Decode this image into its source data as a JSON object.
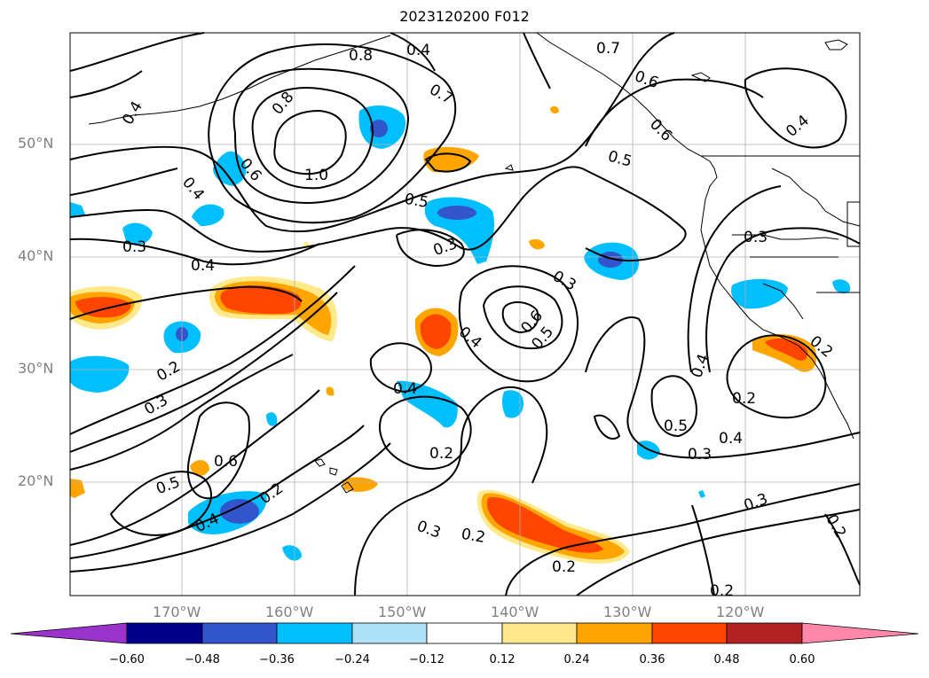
{
  "title": "2023120200 F012",
  "lat_labels": [
    "50°N",
    "40°N",
    "30°N",
    "20°N"
  ],
  "lon_labels": [
    "170°W",
    "160°W",
    "150°W",
    "140°W",
    "130°W",
    "120°W"
  ],
  "colorbar": {
    "ticks": [
      "−0.60",
      "−0.48",
      "−0.36",
      "−0.24",
      "−0.12",
      "0.12",
      "0.24",
      "0.36",
      "0.48",
      "0.60"
    ],
    "colors": [
      "#9933cc",
      "#00008b",
      "#3355cc",
      "#00bfff",
      "#aee0f8",
      "#ffffff",
      "#ffe98a",
      "#ffa500",
      "#ff4500",
      "#b22222",
      "#ff88aa"
    ]
  },
  "colors": {
    "blue_strong": "#3355cc",
    "blue": "#00bfff",
    "blue_light": "#aee0f8",
    "yellow": "#ffe98a",
    "orange": "#ffa500",
    "red_orange": "#ff4500"
  },
  "contour_labels": [
    {
      "text": "0.4"
    },
    {
      "text": "0.8"
    },
    {
      "text": "0.7"
    },
    {
      "text": "0.7"
    },
    {
      "text": "0.6"
    },
    {
      "text": "0.4"
    },
    {
      "text": "0.8"
    },
    {
      "text": "0.6"
    },
    {
      "text": "1.0"
    },
    {
      "text": "0.5"
    },
    {
      "text": "0.4"
    },
    {
      "text": "0.6"
    },
    {
      "text": "0.4"
    },
    {
      "text": "0.5"
    },
    {
      "text": "0.3"
    },
    {
      "text": "0.3"
    },
    {
      "text": "0.4"
    },
    {
      "text": "0.3"
    },
    {
      "text": "0.3"
    },
    {
      "text": "0.6"
    },
    {
      "text": "0.5"
    },
    {
      "text": "0.4"
    },
    {
      "text": "0.2"
    },
    {
      "text": "0.3"
    },
    {
      "text": "0.4"
    },
    {
      "text": "0.4"
    },
    {
      "text": "0.2"
    },
    {
      "text": "0.2"
    },
    {
      "text": "0.6"
    },
    {
      "text": "0.5"
    },
    {
      "text": "0.5"
    },
    {
      "text": "0.3"
    },
    {
      "text": "0.4"
    },
    {
      "text": "0.3"
    },
    {
      "text": "0.2"
    },
    {
      "text": "0.4"
    },
    {
      "text": "0.2"
    },
    {
      "text": "0.3"
    },
    {
      "text": "0.2"
    },
    {
      "text": "0.2"
    },
    {
      "text": "0.2"
    },
    {
      "text": "0.2"
    }
  ]
}
